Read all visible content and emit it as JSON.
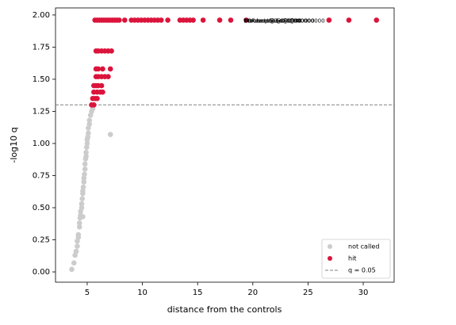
{
  "chart_data": {
    "type": "scatter",
    "xlabel": "distance from the controls",
    "ylabel": "-log10 q",
    "xlim": [
      2.13,
      32.8
    ],
    "ylim": [
      -0.08,
      2.055
    ],
    "xticks": [
      5,
      10,
      15,
      20,
      25,
      30
    ],
    "yticks": [
      {
        "value": 0,
        "label": "0.00"
      },
      {
        "value": 0.25,
        "label": "0.25"
      },
      {
        "value": 0.5,
        "label": "0.50"
      },
      {
        "value": 0.75,
        "label": "0.75"
      },
      {
        "value": 1,
        "label": "1.00"
      },
      {
        "value": 1.25,
        "label": "1.25"
      },
      {
        "value": 1.5,
        "label": "1.50"
      },
      {
        "value": 1.75,
        "label": "1.75"
      },
      {
        "value": 2,
        "label": "2.00"
      }
    ],
    "legend": "lower right",
    "series": [
      {
        "name": "not called",
        "color": "#cccccc",
        "x": [
          3.6,
          3.8,
          3.9,
          4.0,
          4.1,
          4.1,
          4.2,
          4.2,
          4.3,
          4.3,
          4.35,
          4.4,
          4.4,
          4.5,
          4.5,
          4.55,
          4.6,
          4.6,
          4.65,
          4.7,
          4.7,
          4.75,
          4.8,
          4.8,
          4.85,
          4.9,
          4.9,
          4.95,
          5.0,
          5.0,
          5.05,
          5.1,
          5.1,
          5.2,
          5.2,
          5.3,
          5.4,
          5.5,
          7.1,
          4.6
        ],
        "values": [
          0.02,
          0.07,
          0.13,
          0.16,
          0.2,
          0.24,
          0.27,
          0.29,
          0.35,
          0.38,
          0.42,
          0.44,
          0.47,
          0.5,
          0.53,
          0.57,
          0.61,
          0.63,
          0.66,
          0.7,
          0.73,
          0.76,
          0.8,
          0.84,
          0.88,
          0.9,
          0.93,
          0.97,
          1.0,
          1.03,
          1.05,
          1.08,
          1.12,
          1.15,
          1.18,
          1.22,
          1.25,
          1.27,
          1.07,
          0.43
        ]
      },
      {
        "name": "hit",
        "color": "#dc143c",
        "x": [
          5.7,
          5.9,
          6.1,
          6.3,
          6.5,
          6.7,
          6.9,
          7.1,
          7.3,
          7.5,
          7.7,
          7.9,
          8.4,
          9.0,
          9.3,
          9.6,
          9.9,
          10.2,
          10.5,
          10.8,
          11.1,
          11.4,
          11.7,
          12.3,
          13.4,
          13.7,
          14.0,
          14.3,
          14.6,
          15.5,
          17.0,
          18.0,
          19.4,
          26.9,
          28.7,
          31.2,
          5.8,
          6.0,
          6.3,
          6.6,
          6.9,
          7.2,
          5.8,
          6.0,
          6.4,
          7.1,
          5.8,
          6.0,
          6.3,
          6.6,
          6.9,
          5.6,
          5.8,
          6.0,
          6.3,
          5.6,
          5.9,
          6.2,
          6.4,
          5.5,
          5.7,
          5.9,
          5.4,
          5.6
        ],
        "values": [
          1.96,
          1.96,
          1.96,
          1.96,
          1.96,
          1.96,
          1.96,
          1.96,
          1.96,
          1.96,
          1.96,
          1.96,
          1.96,
          1.96,
          1.96,
          1.96,
          1.96,
          1.96,
          1.96,
          1.96,
          1.96,
          1.96,
          1.96,
          1.96,
          1.96,
          1.96,
          1.96,
          1.96,
          1.96,
          1.96,
          1.96,
          1.96,
          1.96,
          1.96,
          1.96,
          1.96,
          1.72,
          1.72,
          1.72,
          1.72,
          1.72,
          1.72,
          1.58,
          1.58,
          1.58,
          1.58,
          1.52,
          1.52,
          1.52,
          1.52,
          1.52,
          1.45,
          1.45,
          1.45,
          1.45,
          1.4,
          1.4,
          1.4,
          1.4,
          1.35,
          1.35,
          1.35,
          1.3,
          1.3
        ]
      }
    ],
    "hline": {
      "value": 1.301,
      "label": "q = 0.05",
      "color": "#808080"
    },
    "annotations": [
      {
        "text": "Staurosporine@0.300000",
        "x": 19.4,
        "y": 1.96
      },
      {
        "text": "Dexamethasone@30.000000",
        "x": 19.4,
        "y": 1.96
      },
      {
        "text": "Bortezomib@0.100000",
        "x": 19.4,
        "y": 1.96
      },
      {
        "text": "TGF-beta@3.000000",
        "x": 19.4,
        "y": 1.96
      }
    ]
  }
}
